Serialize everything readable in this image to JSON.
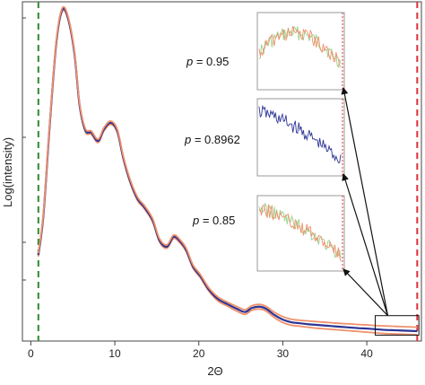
{
  "chart_data": {
    "type": "line",
    "xlabel": "2Θ",
    "ylabel": "Log(intensity)",
    "xlim": [
      -1,
      46.5
    ],
    "ylim": [
      0,
      1
    ],
    "x_ticks": [
      0,
      10,
      20,
      30,
      40
    ],
    "x_tick_labels": [
      "0",
      "10",
      "20",
      "30",
      "40"
    ],
    "y_labeled_ticks": false,
    "grid": false,
    "reference_lines": [
      {
        "x": 0.9,
        "color": "#2e8b2e",
        "style": "dashed"
      },
      {
        "x": 46.0,
        "color": "#e0303a",
        "style": "dashed"
      }
    ],
    "zoom_box": {
      "x": [
        41.0,
        46.2
      ],
      "y": [
        0.007,
        0.066
      ]
    },
    "series": [
      {
        "color": "#f0906a",
        "x": [
          0.9,
          1.5,
          2.2,
          3.0,
          3.7,
          4.4,
          5.2,
          5.8,
          6.5,
          7.2,
          8.0,
          8.7,
          9.5,
          10.3,
          11.0,
          11.8,
          12.7,
          13.5,
          14.5,
          15.3,
          16.2,
          17.0,
          17.8,
          18.5,
          19.3,
          20.2,
          21.2,
          22.3,
          23.4,
          24.5,
          25.5,
          26.3,
          27.2,
          28.0,
          29.0,
          30.0,
          31.0,
          32.0,
          33.0,
          34.0,
          35.0,
          36.0,
          37.0,
          38.0,
          39.0,
          40.0,
          41.0,
          42.0,
          43.0,
          44.0,
          45.0,
          46.0
        ],
        "y": [
          0.245,
          0.365,
          0.62,
          0.88,
          0.985,
          0.965,
          0.855,
          0.7,
          0.622,
          0.615,
          0.59,
          0.625,
          0.645,
          0.62,
          0.54,
          0.47,
          0.415,
          0.39,
          0.35,
          0.29,
          0.27,
          0.3,
          0.285,
          0.26,
          0.21,
          0.18,
          0.14,
          0.11,
          0.095,
          0.08,
          0.07,
          0.082,
          0.086,
          0.08,
          0.06,
          0.045,
          0.037,
          0.034,
          0.031,
          0.028,
          0.026,
          0.024,
          0.022,
          0.02,
          0.018,
          0.016,
          0.014,
          0.012,
          0.011,
          0.01,
          0.009,
          0.008
        ]
      },
      {
        "color": "#2b3494",
        "x": [
          0.9,
          1.5,
          2.2,
          3.0,
          3.7,
          4.4,
          5.2,
          5.8,
          6.5,
          7.2,
          8.0,
          8.7,
          9.5,
          10.3,
          11.0,
          11.8,
          12.7,
          13.5,
          14.5,
          15.3,
          16.2,
          17.0,
          17.8,
          18.5,
          19.3,
          20.2,
          21.2,
          22.3,
          23.4,
          24.5,
          25.5,
          26.3,
          27.2,
          28.0,
          29.0,
          30.0,
          31.0,
          32.0,
          33.0,
          34.0,
          35.0,
          36.0,
          37.0,
          38.0,
          39.0,
          40.0,
          41.0,
          42.0,
          43.0,
          44.0,
          45.0,
          46.0
        ],
        "y": [
          0.25,
          0.37,
          0.625,
          0.885,
          0.99,
          0.97,
          0.86,
          0.705,
          0.627,
          0.62,
          0.595,
          0.63,
          0.65,
          0.625,
          0.545,
          0.475,
          0.42,
          0.395,
          0.355,
          0.295,
          0.275,
          0.305,
          0.29,
          0.265,
          0.215,
          0.185,
          0.145,
          0.116,
          0.101,
          0.087,
          0.077,
          0.089,
          0.093,
          0.087,
          0.068,
          0.054,
          0.046,
          0.043,
          0.04,
          0.038,
          0.036,
          0.034,
          0.032,
          0.03,
          0.028,
          0.027,
          0.025,
          0.023,
          0.022,
          0.021,
          0.02,
          0.019
        ]
      },
      {
        "color": "#f0906a",
        "x": [
          0.9,
          1.5,
          2.2,
          3.0,
          3.7,
          4.4,
          5.2,
          5.8,
          6.5,
          7.2,
          8.0,
          8.7,
          9.5,
          10.3,
          11.0,
          11.8,
          12.7,
          13.5,
          14.5,
          15.3,
          16.2,
          17.0,
          17.8,
          18.5,
          19.3,
          20.2,
          21.2,
          22.3,
          23.4,
          24.5,
          25.5,
          26.3,
          27.2,
          28.0,
          29.0,
          30.0,
          31.0,
          32.0,
          33.0,
          34.0,
          35.0,
          36.0,
          37.0,
          38.0,
          39.0,
          40.0,
          41.0,
          42.0,
          43.0,
          44.0,
          45.0,
          46.0
        ],
        "y": [
          0.255,
          0.375,
          0.63,
          0.89,
          0.995,
          0.975,
          0.865,
          0.71,
          0.632,
          0.625,
          0.6,
          0.635,
          0.655,
          0.63,
          0.55,
          0.48,
          0.425,
          0.4,
          0.36,
          0.3,
          0.28,
          0.31,
          0.295,
          0.27,
          0.22,
          0.19,
          0.15,
          0.122,
          0.107,
          0.094,
          0.084,
          0.096,
          0.1,
          0.094,
          0.076,
          0.063,
          0.055,
          0.052,
          0.05,
          0.048,
          0.046,
          0.044,
          0.042,
          0.041,
          0.039,
          0.038,
          0.036,
          0.035,
          0.034,
          0.033,
          0.032,
          0.031
        ]
      }
    ],
    "insets": [
      {
        "label": "p = 0.95",
        "label_var": "p",
        "label_value": " = 0.95",
        "colors": [
          "#f0906a",
          "#9ccf8c"
        ],
        "trend": "hump"
      },
      {
        "label": "p = 0.8962",
        "label_var": "p",
        "label_value": " = 0.8962",
        "colors": [
          "#2b3494"
        ],
        "trend": "decline"
      },
      {
        "label": "p = 0.85",
        "label_var": "p",
        "label_value": " = 0.85",
        "colors": [
          "#f0906a",
          "#9ccf8c"
        ],
        "trend": "decline"
      }
    ]
  }
}
